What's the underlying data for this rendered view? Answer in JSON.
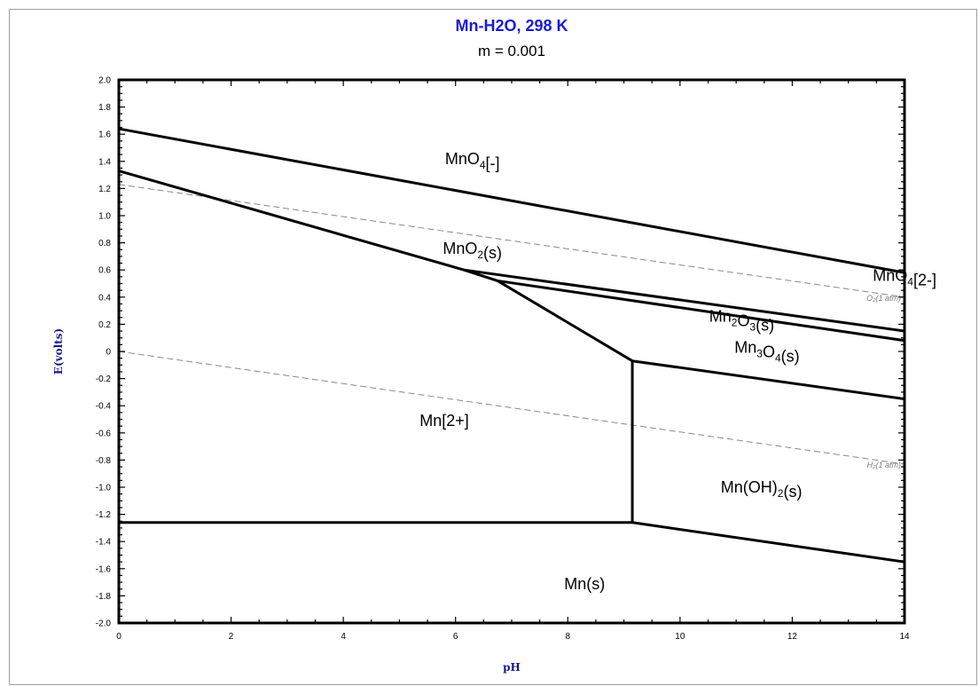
{
  "chart_data": {
    "type": "line",
    "title": "Mn-H2O, 298 K",
    "subtitle": "m = 0.001",
    "xlabel": "pH",
    "ylabel": "E(volts)",
    "xlim": [
      0,
      14
    ],
    "ylim": [
      -2.0,
      2.0
    ],
    "x_ticks": [
      "0",
      "2",
      "4",
      "6",
      "8",
      "10",
      "12",
      "14"
    ],
    "y_ticks": [
      "2.0",
      "1.8",
      "1.6",
      "1.4",
      "1.2",
      "1.0",
      "0.8",
      "0.6",
      "0.4",
      "0.2",
      "0",
      "-0.2",
      "-0.4",
      "-0.6",
      "-0.8",
      "-1.0",
      "-1.2",
      "-1.4",
      "-1.6",
      "-1.8",
      "-2.0"
    ],
    "grid": false,
    "boundaries": [
      {
        "points": [
          [
            0,
            1.64
          ],
          [
            14,
            0.58
          ]
        ]
      },
      {
        "points": [
          [
            0,
            1.33
          ],
          [
            6.15,
            0.6
          ]
        ]
      },
      {
        "points": [
          [
            6.15,
            0.6
          ],
          [
            14,
            0.15
          ]
        ]
      },
      {
        "points": [
          [
            6.15,
            0.6
          ],
          [
            6.75,
            0.52
          ]
        ]
      },
      {
        "points": [
          [
            6.75,
            0.52
          ],
          [
            14,
            0.08
          ]
        ]
      },
      {
        "points": [
          [
            6.75,
            0.52
          ],
          [
            9.15,
            -0.07
          ]
        ]
      },
      {
        "points": [
          [
            9.15,
            -0.07
          ],
          [
            14,
            -0.35
          ]
        ]
      },
      {
        "points": [
          [
            9.15,
            -0.07
          ],
          [
            9.15,
            -1.26
          ]
        ]
      },
      {
        "points": [
          [
            0,
            -1.26
          ],
          [
            9.15,
            -1.26
          ]
        ]
      },
      {
        "points": [
          [
            9.15,
            -1.26
          ],
          [
            14,
            -1.55
          ]
        ]
      }
    ],
    "reference_lines": [
      {
        "label": "O₂(1 atm)",
        "points": [
          [
            0,
            1.23
          ],
          [
            14,
            0.4
          ]
        ]
      },
      {
        "label": "H₂(1 atm)",
        "points": [
          [
            0,
            0.0
          ],
          [
            14,
            -0.83
          ]
        ]
      }
    ],
    "regions": [
      {
        "label": "MnO₄[-]",
        "x": 6.3,
        "y": 1.38
      },
      {
        "label": "MnO₂(s)",
        "x": 6.3,
        "y": 0.72
      },
      {
        "label": "MnO₄[2-]",
        "x": 14.0,
        "y": 0.52
      },
      {
        "label": "Mn₂O₃(s)",
        "x": 11.1,
        "y": 0.22
      },
      {
        "label": "Mn₃O₄(s)",
        "x": 11.55,
        "y": -0.01
      },
      {
        "label": "Mn[2+]",
        "x": 5.8,
        "y": -0.55
      },
      {
        "label": "Mn(OH)₂(s)",
        "x": 11.45,
        "y": -1.04
      },
      {
        "label": "Mn(s)",
        "x": 8.3,
        "y": -1.75
      }
    ],
    "colors": {
      "title": "#1a1ad6",
      "axis_label": "#1a1a8a",
      "boundary": "#000000",
      "reference": "#888888"
    }
  }
}
